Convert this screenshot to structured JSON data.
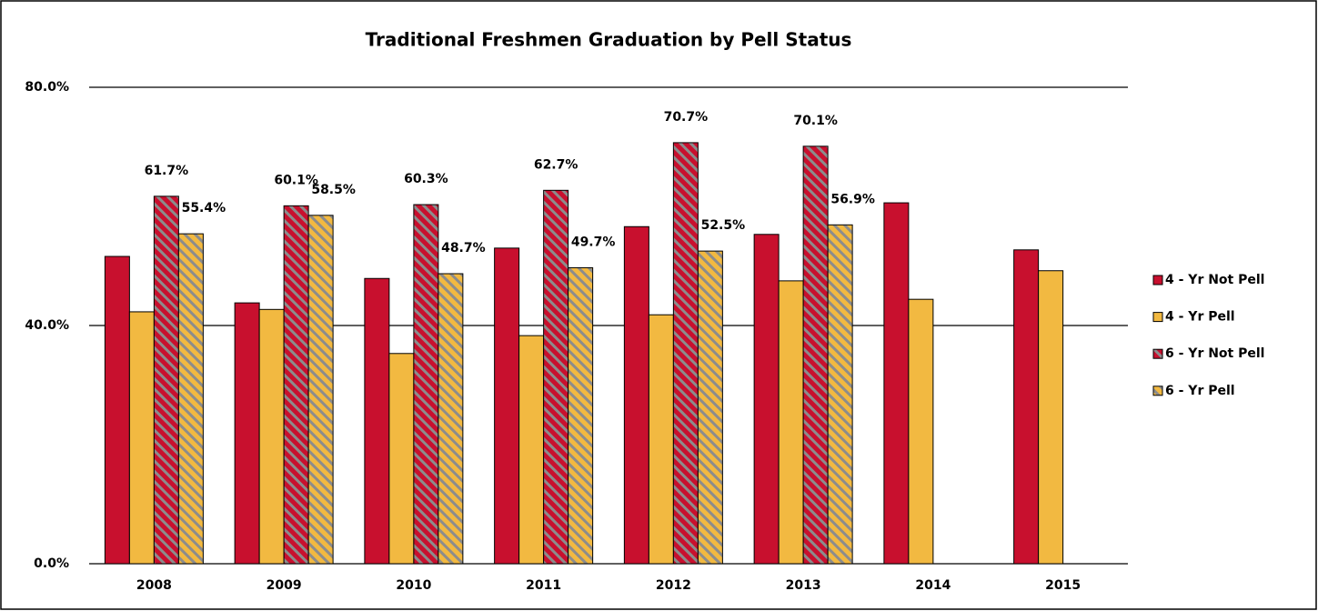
{
  "chart_data": {
    "type": "bar",
    "title": "Traditional Freshmen Graduation by Pell Status",
    "categories": [
      "2008",
      "2009",
      "2010",
      "2011",
      "2012",
      "2013",
      "2014",
      "2015"
    ],
    "series": [
      {
        "name": "4 - Yr Not Pell",
        "color": "#c8102e",
        "hatch": false,
        "values": [
          51.6,
          43.8,
          47.9,
          53.0,
          56.6,
          55.3,
          60.6,
          52.7
        ]
      },
      {
        "name": "4 - Yr Pell",
        "color": "#f2b941",
        "hatch": false,
        "values": [
          42.3,
          42.7,
          35.3,
          38.3,
          41.8,
          47.5,
          44.4,
          49.2
        ]
      },
      {
        "name": "6 - Yr Not Pell",
        "color": "#c8102e",
        "hatch": true,
        "values": [
          61.7,
          60.1,
          60.3,
          62.7,
          70.7,
          70.1,
          null,
          null
        ],
        "value_labels": [
          "61.7%",
          "60.1%",
          "60.3%",
          "62.7%",
          "70.7%",
          "70.1%",
          null,
          null
        ]
      },
      {
        "name": "6 - Yr Pell",
        "color": "#f2b941",
        "hatch": true,
        "values": [
          55.4,
          58.5,
          48.7,
          49.7,
          52.5,
          56.9,
          null,
          null
        ],
        "value_labels": [
          "55.4%",
          "58.5%",
          "48.7%",
          "49.7%",
          "52.5%",
          "56.9%",
          null,
          null
        ]
      }
    ],
    "ylim": [
      0,
      80
    ],
    "yticks": [
      {
        "value": 0,
        "label": "0.0%"
      },
      {
        "value": 40,
        "label": "40.0%"
      },
      {
        "value": 80,
        "label": "80.0%"
      }
    ],
    "grid": true,
    "legend": "right"
  }
}
